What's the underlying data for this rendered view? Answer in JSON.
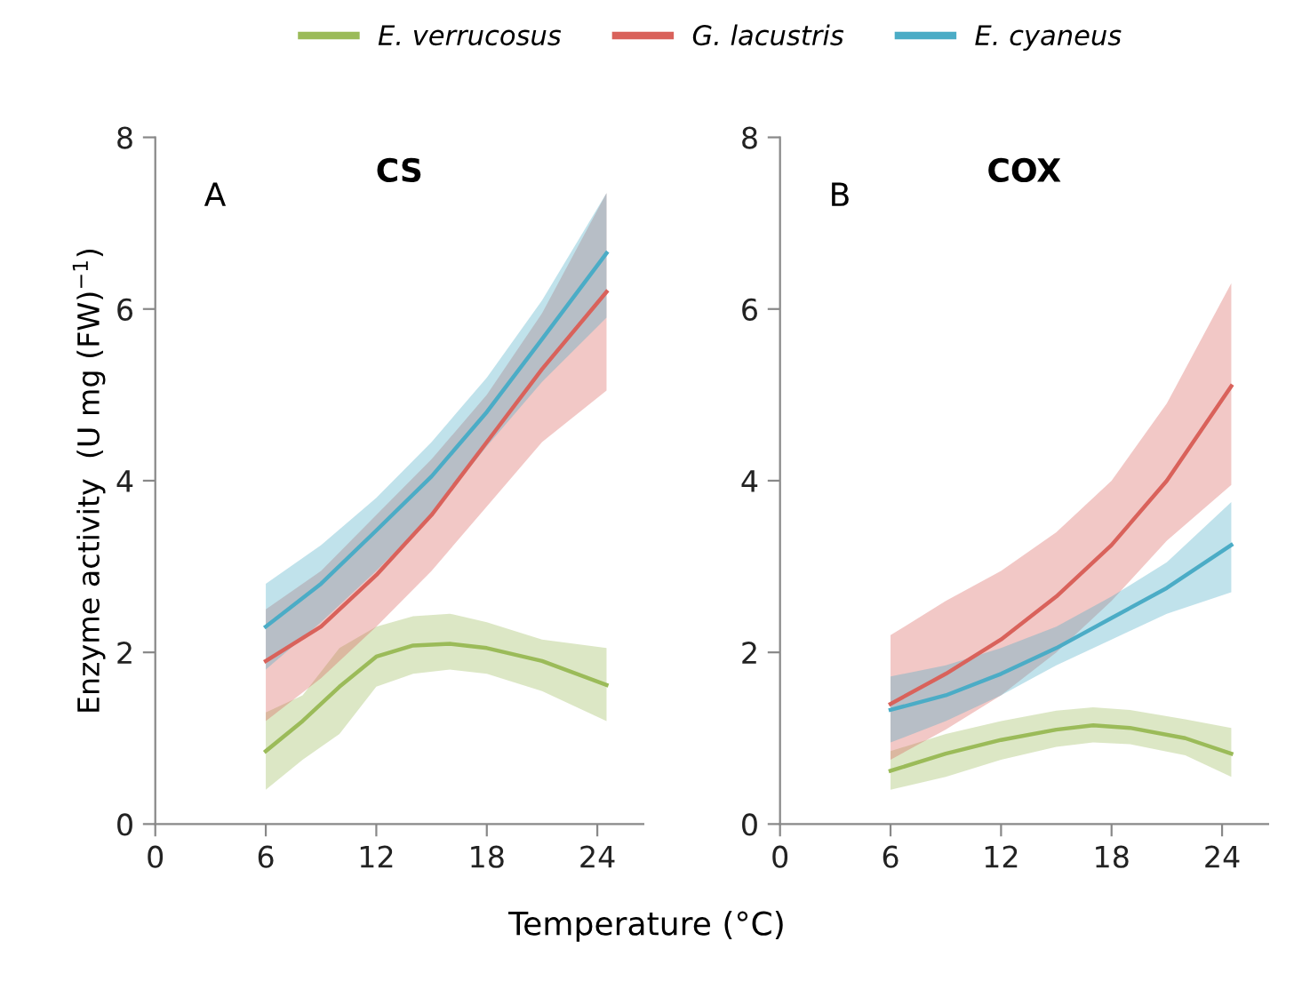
{
  "chart_data": [
    {
      "type": "line",
      "title": "CS",
      "xlabel": "Temperature (°C)",
      "ylabel": "Enzyme activity  (U mg (FW)$^{−1}$)",
      "annotations": [
        "A"
      ],
      "legend": "top",
      "grid": false,
      "xlim": [
        0,
        26.5
      ],
      "xticks": [
        0,
        6,
        12,
        18,
        24
      ],
      "ylim": [
        0,
        8
      ],
      "yticks": [
        0,
        2,
        4,
        6,
        8
      ],
      "series": [
        {
          "name": "E. verrucosus",
          "color": "#9bbb59",
          "x": [
            6,
            8,
            10,
            12,
            14,
            16,
            18,
            21,
            24.5
          ],
          "values": [
            0.85,
            1.2,
            1.6,
            1.95,
            2.08,
            2.1,
            2.05,
            1.9,
            1.62
          ],
          "lower": [
            0.4,
            0.75,
            1.05,
            1.6,
            1.75,
            1.8,
            1.75,
            1.55,
            1.2
          ],
          "upper": [
            1.3,
            1.5,
            2.05,
            2.3,
            2.42,
            2.45,
            2.35,
            2.15,
            2.05
          ]
        },
        {
          "name": "G. lacustris",
          "color": "#d9625b",
          "x": [
            6,
            9,
            12,
            15,
            18,
            21,
            24.5
          ],
          "values": [
            1.9,
            2.3,
            2.9,
            3.6,
            4.45,
            5.3,
            6.2
          ],
          "lower": [
            1.2,
            1.7,
            2.3,
            2.95,
            3.7,
            4.45,
            5.05
          ],
          "upper": [
            2.5,
            2.95,
            3.6,
            4.25,
            5.0,
            5.95,
            7.35
          ]
        },
        {
          "name": "E. cyaneus",
          "color": "#4bacc6",
          "x": [
            6,
            9,
            12,
            15,
            18,
            21,
            24.5
          ],
          "values": [
            2.3,
            2.8,
            3.42,
            4.05,
            4.8,
            5.65,
            6.65
          ],
          "lower": [
            1.8,
            2.35,
            2.95,
            3.6,
            4.4,
            5.15,
            5.9
          ],
          "upper": [
            2.8,
            3.25,
            3.8,
            4.45,
            5.2,
            6.1,
            7.35
          ]
        }
      ]
    },
    {
      "type": "line",
      "title": "COX",
      "annotations": [
        "B"
      ],
      "grid": false,
      "xlim": [
        0,
        26.5
      ],
      "xticks": [
        0,
        6,
        12,
        18,
        24
      ],
      "ylim": [
        0,
        8
      ],
      "yticks": [
        0,
        2,
        4,
        6,
        8
      ],
      "series": [
        {
          "name": "E. verrucosus",
          "color": "#9bbb59",
          "x": [
            6,
            9,
            12,
            15,
            17,
            19,
            22,
            24.5
          ],
          "values": [
            0.62,
            0.82,
            0.98,
            1.1,
            1.15,
            1.12,
            1.0,
            0.82
          ],
          "lower": [
            0.4,
            0.55,
            0.75,
            0.9,
            0.95,
            0.93,
            0.8,
            0.55
          ],
          "upper": [
            0.85,
            1.05,
            1.2,
            1.32,
            1.36,
            1.33,
            1.22,
            1.12
          ]
        },
        {
          "name": "G. lacustris",
          "color": "#d9625b",
          "x": [
            6,
            9,
            12,
            15,
            18,
            21,
            24.5
          ],
          "values": [
            1.4,
            1.75,
            2.15,
            2.65,
            3.25,
            4.0,
            5.1
          ],
          "lower": [
            0.75,
            1.1,
            1.5,
            2.0,
            2.6,
            3.3,
            3.95
          ],
          "upper": [
            2.2,
            2.6,
            2.95,
            3.4,
            4.0,
            4.9,
            6.3
          ]
        },
        {
          "name": "E. cyaneus",
          "color": "#4bacc6",
          "x": [
            6,
            9,
            12,
            15,
            18,
            21,
            24.5
          ],
          "values": [
            1.33,
            1.5,
            1.75,
            2.05,
            2.4,
            2.75,
            3.25
          ],
          "lower": [
            0.95,
            1.2,
            1.5,
            1.85,
            2.15,
            2.45,
            2.7
          ],
          "upper": [
            1.72,
            1.85,
            2.05,
            2.3,
            2.65,
            3.05,
            3.75
          ]
        }
      ]
    }
  ]
}
